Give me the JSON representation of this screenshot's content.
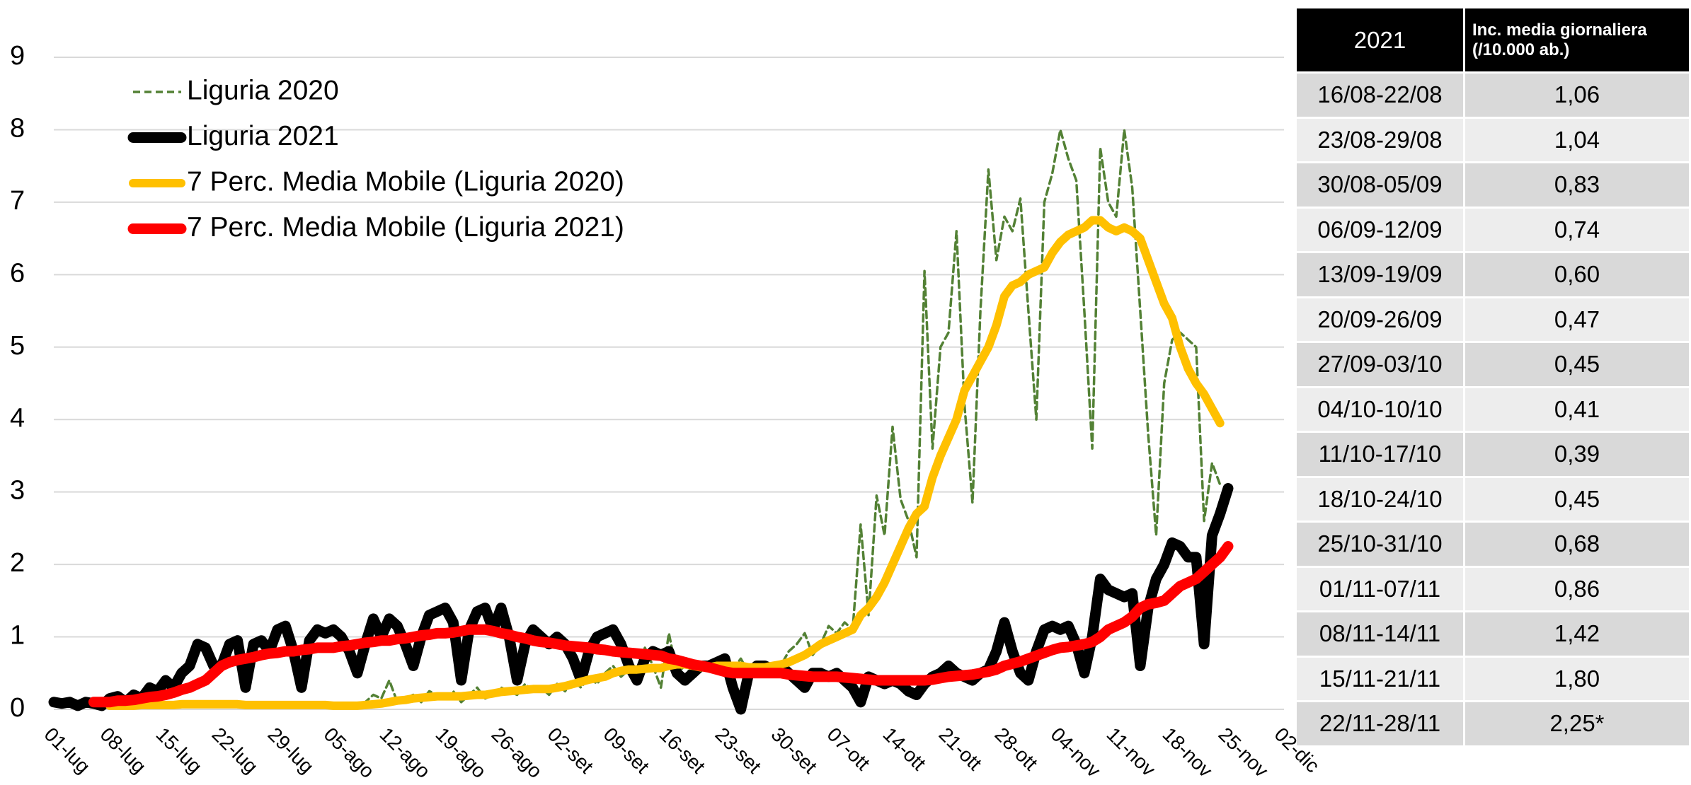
{
  "chart_data": {
    "type": "line",
    "categories": [
      "01-lug",
      null,
      null,
      null,
      null,
      null,
      null,
      "08-lug",
      null,
      null,
      null,
      null,
      null,
      null,
      "15-lug",
      null,
      null,
      null,
      null,
      null,
      null,
      "22-lug",
      null,
      null,
      null,
      null,
      null,
      null,
      "29-lug",
      null,
      null,
      null,
      null,
      null,
      null,
      "05-ago",
      null,
      null,
      null,
      null,
      null,
      null,
      "12-ago",
      null,
      null,
      null,
      null,
      null,
      null,
      "19-ago",
      null,
      null,
      null,
      null,
      null,
      null,
      "26-ago",
      null,
      null,
      null,
      null,
      null,
      null,
      "02-set",
      null,
      null,
      null,
      null,
      null,
      null,
      "09-set",
      null,
      null,
      null,
      null,
      null,
      null,
      "16-set",
      null,
      null,
      null,
      null,
      null,
      null,
      "23-set",
      null,
      null,
      null,
      null,
      null,
      null,
      "30-set",
      null,
      null,
      null,
      null,
      null,
      null,
      "07-ott",
      null,
      null,
      null,
      null,
      null,
      null,
      "14-ott",
      null,
      null,
      null,
      null,
      null,
      null,
      "21-ott",
      null,
      null,
      null,
      null,
      null,
      null,
      "28-ott",
      null,
      null,
      null,
      null,
      null,
      null,
      "04-nov",
      null,
      null,
      null,
      null,
      null,
      null,
      "11-nov",
      null,
      null,
      null,
      null,
      null,
      null,
      "18-nov",
      null,
      null,
      null,
      null,
      null,
      null,
      "25-nov",
      null,
      null,
      null,
      null,
      null,
      null,
      "02-dic"
    ],
    "series": [
      {
        "name": "Liguria 2020",
        "color": "#538135",
        "dashed": true,
        "width": 3.5,
        "values": [
          0.05,
          0.03,
          0.05,
          0.02,
          0.05,
          0.08,
          0.03,
          0.05,
          0.1,
          0.03,
          0.05,
          0.08,
          0.1,
          0.05,
          0.05,
          0.08,
          0.1,
          0.03,
          0.05,
          0.1,
          0.05,
          0.08,
          0.05,
          0.03,
          0.1,
          0.05,
          0.08,
          0.05,
          0.05,
          0.1,
          0.03,
          0.05,
          0.08,
          0.05,
          0.1,
          0.03,
          0.05,
          0.08,
          0.05,
          0.1,
          0.2,
          0.15,
          0.4,
          0.1,
          0.15,
          0.2,
          0.1,
          0.25,
          0.2,
          0.15,
          0.25,
          0.1,
          0.2,
          0.3,
          0.15,
          0.2,
          0.3,
          0.25,
          0.2,
          0.35,
          0.25,
          0.3,
          0.2,
          0.35,
          0.25,
          0.4,
          0.3,
          0.45,
          0.35,
          0.5,
          0.6,
          0.45,
          0.55,
          0.5,
          0.85,
          0.6,
          0.3,
          1.05,
          0.5,
          0.6,
          0.45,
          0.55,
          0.6,
          0.7,
          0.65,
          0.55,
          0.7,
          0.5,
          0.6,
          0.5,
          0.65,
          0.6,
          0.8,
          0.9,
          1.05,
          0.75,
          0.9,
          1.15,
          1.05,
          1.2,
          1.1,
          2.55,
          1.3,
          2.95,
          2.4,
          3.9,
          2.9,
          2.6,
          2.1,
          6.05,
          3.6,
          5.0,
          5.2,
          6.6,
          4.2,
          2.85,
          5.5,
          7.45,
          6.2,
          6.8,
          6.6,
          7.05,
          5.5,
          4.0,
          7.0,
          7.4,
          8.0,
          7.6,
          7.3,
          5.5,
          3.6,
          7.75,
          7.0,
          6.8,
          8.0,
          7.2,
          5.5,
          3.8,
          2.4,
          4.5,
          5.1,
          5.2,
          5.1,
          5.0,
          2.6,
          3.4,
          3.1,
          null,
          null,
          null,
          null,
          null,
          null,
          null,
          null
        ]
      },
      {
        "name": "Liguria 2021",
        "color": "#000000",
        "dashed": false,
        "width": 15,
        "values": [
          0.1,
          0.08,
          0.1,
          0.05,
          0.1,
          0.08,
          0.05,
          0.15,
          0.18,
          0.1,
          0.2,
          0.15,
          0.3,
          0.25,
          0.4,
          0.3,
          0.5,
          0.6,
          0.9,
          0.85,
          0.6,
          0.6,
          0.9,
          0.95,
          0.3,
          0.9,
          0.95,
          0.8,
          1.1,
          1.15,
          0.8,
          0.3,
          0.95,
          1.1,
          1.05,
          1.1,
          1.0,
          0.8,
          0.5,
          0.9,
          1.25,
          1.0,
          1.25,
          1.15,
          0.9,
          0.6,
          1.0,
          1.3,
          1.35,
          1.4,
          1.2,
          0.4,
          1.1,
          1.35,
          1.4,
          1.1,
          1.4,
          1.0,
          0.4,
          0.9,
          1.1,
          1.0,
          0.9,
          1.0,
          0.9,
          0.7,
          0.4,
          0.8,
          1.0,
          1.05,
          1.1,
          0.9,
          0.6,
          0.4,
          0.7,
          0.8,
          0.75,
          0.8,
          0.5,
          0.4,
          0.5,
          0.6,
          0.6,
          0.65,
          0.7,
          0.3,
          0.0,
          0.5,
          0.6,
          0.6,
          0.55,
          0.6,
          0.5,
          0.4,
          0.3,
          0.5,
          0.5,
          0.45,
          0.5,
          0.4,
          0.3,
          0.1,
          0.45,
          0.4,
          0.35,
          0.4,
          0.35,
          0.25,
          0.2,
          0.35,
          0.45,
          0.5,
          0.6,
          0.5,
          0.45,
          0.4,
          0.5,
          0.55,
          0.8,
          1.2,
          0.8,
          0.5,
          0.4,
          0.8,
          1.1,
          1.15,
          1.1,
          1.15,
          0.9,
          0.5,
          1.0,
          1.8,
          1.65,
          1.6,
          1.55,
          1.6,
          0.6,
          1.4,
          1.8,
          2.0,
          2.3,
          2.25,
          2.1,
          2.1,
          0.9,
          2.4,
          2.7,
          3.05,
          null,
          null,
          null,
          null,
          null,
          null,
          null
        ]
      },
      {
        "name": "7 Perc. Media Mobile (Liguria 2020)",
        "color": "#ffc000",
        "dashed": false,
        "width": 12,
        "values": [
          null,
          null,
          null,
          null,
          null,
          null,
          null,
          0.05,
          0.05,
          0.05,
          0.05,
          0.06,
          0.06,
          0.06,
          0.06,
          0.06,
          0.07,
          0.07,
          0.07,
          0.07,
          0.07,
          0.07,
          0.07,
          0.07,
          0.06,
          0.06,
          0.06,
          0.06,
          0.06,
          0.06,
          0.06,
          0.06,
          0.06,
          0.06,
          0.06,
          0.05,
          0.05,
          0.05,
          0.05,
          0.06,
          0.07,
          0.08,
          0.1,
          0.12,
          0.13,
          0.15,
          0.16,
          0.17,
          0.18,
          0.18,
          0.18,
          0.18,
          0.19,
          0.2,
          0.2,
          0.22,
          0.24,
          0.25,
          0.26,
          0.27,
          0.28,
          0.28,
          0.28,
          0.3,
          0.32,
          0.35,
          0.38,
          0.41,
          0.43,
          0.45,
          0.5,
          0.53,
          0.55,
          0.55,
          0.56,
          0.57,
          0.57,
          0.6,
          0.62,
          0.62,
          0.6,
          0.58,
          0.58,
          0.6,
          0.6,
          0.6,
          0.6,
          0.58,
          0.58,
          0.58,
          0.6,
          0.62,
          0.65,
          0.7,
          0.75,
          0.82,
          0.9,
          0.95,
          1.0,
          1.05,
          1.1,
          1.3,
          1.4,
          1.55,
          1.75,
          2.0,
          2.25,
          2.5,
          2.7,
          2.8,
          3.2,
          3.5,
          3.75,
          4.0,
          4.4,
          4.6,
          4.8,
          5.0,
          5.3,
          5.7,
          5.85,
          5.9,
          6.0,
          6.05,
          6.1,
          6.3,
          6.45,
          6.55,
          6.6,
          6.65,
          6.75,
          6.75,
          6.65,
          6.6,
          6.65,
          6.6,
          6.5,
          6.2,
          5.9,
          5.6,
          5.4,
          5.0,
          4.7,
          4.5,
          4.35,
          4.15,
          3.95,
          null,
          null,
          null,
          null,
          null,
          null,
          null,
          null
        ]
      },
      {
        "name": "7 Perc. Media Mobile (Liguria 2021)",
        "color": "#ff0000",
        "dashed": false,
        "width": 15,
        "values": [
          null,
          null,
          null,
          null,
          null,
          0.1,
          0.1,
          0.1,
          0.12,
          0.12,
          0.13,
          0.15,
          0.17,
          0.18,
          0.2,
          0.23,
          0.27,
          0.3,
          0.35,
          0.4,
          0.5,
          0.6,
          0.65,
          0.68,
          0.7,
          0.72,
          0.75,
          0.77,
          0.78,
          0.8,
          0.8,
          0.82,
          0.83,
          0.85,
          0.85,
          0.85,
          0.87,
          0.88,
          0.9,
          0.92,
          0.93,
          0.95,
          0.95,
          0.97,
          0.98,
          1.0,
          1.02,
          1.03,
          1.05,
          1.05,
          1.06,
          1.08,
          1.1,
          1.1,
          1.1,
          1.08,
          1.05,
          1.03,
          1.0,
          0.98,
          0.95,
          0.93,
          0.92,
          0.9,
          0.88,
          0.87,
          0.86,
          0.85,
          0.83,
          0.82,
          0.8,
          0.79,
          0.78,
          0.77,
          0.76,
          0.75,
          0.74,
          0.7,
          0.68,
          0.65,
          0.62,
          0.6,
          0.58,
          0.55,
          0.52,
          0.5,
          0.5,
          0.5,
          0.5,
          0.5,
          0.5,
          0.5,
          0.48,
          0.47,
          0.46,
          0.45,
          0.45,
          0.45,
          0.45,
          0.44,
          0.43,
          0.42,
          0.41,
          0.4,
          0.4,
          0.4,
          0.4,
          0.4,
          0.4,
          0.4,
          0.41,
          0.43,
          0.45,
          0.46,
          0.47,
          0.48,
          0.5,
          0.52,
          0.55,
          0.6,
          0.63,
          0.66,
          0.7,
          0.74,
          0.78,
          0.82,
          0.85,
          0.86,
          0.88,
          0.9,
          0.93,
          1.0,
          1.1,
          1.15,
          1.2,
          1.28,
          1.4,
          1.45,
          1.47,
          1.5,
          1.6,
          1.7,
          1.75,
          1.8,
          1.9,
          2.0,
          2.1,
          2.25,
          null,
          null,
          null,
          null,
          null,
          null,
          null
        ]
      }
    ],
    "ylim": [
      0,
      9
    ],
    "yticks": [
      0,
      1,
      2,
      3,
      4,
      5,
      6,
      7,
      8,
      9
    ],
    "grid": true,
    "legend": "upper left"
  },
  "table": {
    "header": [
      "2021",
      "Inc. media giornaliera (/10.000 ab.)"
    ],
    "rows": [
      [
        "16/08-22/08",
        "1,06"
      ],
      [
        "23/08-29/08",
        "1,04"
      ],
      [
        "30/08-05/09",
        "0,83"
      ],
      [
        "06/09-12/09",
        "0,74"
      ],
      [
        "13/09-19/09",
        "0,60"
      ],
      [
        "20/09-26/09",
        "0,47"
      ],
      [
        "27/09-03/10",
        "0,45"
      ],
      [
        "04/10-10/10",
        "0,41"
      ],
      [
        "11/10-17/10",
        "0,39"
      ],
      [
        "18/10-24/10",
        "0,45"
      ],
      [
        "25/10-31/10",
        "0,68"
      ],
      [
        "01/11-07/11",
        "0,86"
      ],
      [
        "08/11-14/11",
        "1,42"
      ],
      [
        "15/11-21/11",
        "1,80"
      ],
      [
        "22/11-28/11",
        "2,25*"
      ]
    ]
  }
}
